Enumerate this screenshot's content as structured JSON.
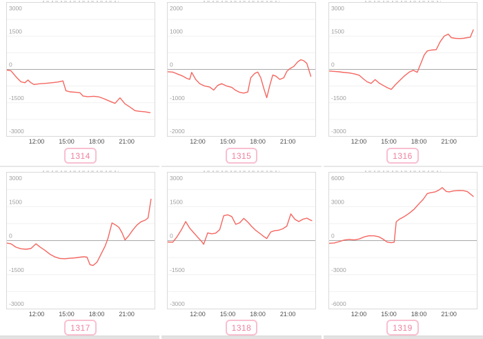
{
  "colors": {
    "line": "#f4655f",
    "grid": "#f0f0f0",
    "zero_line": "#a8a8a8",
    "panel_border": "#d9d9d9",
    "y_tick_label": "#9e9e9e",
    "x_tick_label": "#4d4d4d",
    "badge_text": "#ef7f9e",
    "badge_border": "#f8bfd0"
  },
  "axis": {
    "x_ticks": [
      "12:00",
      "15:00",
      "18:00",
      "21:00"
    ],
    "x_tick_hours": [
      12,
      15,
      18,
      21
    ],
    "x_domain_hours": [
      9,
      23.75
    ],
    "grid_divisions": 8
  },
  "chart_data": [
    {
      "type": "line",
      "id": "1314",
      "ylim": [
        -3000,
        3000
      ],
      "y_tick_labels": [
        "3000",
        "1500",
        "0",
        "-1500",
        "-3000"
      ],
      "points": [
        [
          9,
          -30
        ],
        [
          9.4,
          -60
        ],
        [
          9.9,
          -330
        ],
        [
          10.4,
          -560
        ],
        [
          10.8,
          -600
        ],
        [
          11.1,
          -480
        ],
        [
          11.4,
          -600
        ],
        [
          11.7,
          -680
        ],
        [
          12.2,
          -650
        ],
        [
          12.8,
          -630
        ],
        [
          13.5,
          -600
        ],
        [
          14.1,
          -570
        ],
        [
          14.6,
          -520
        ],
        [
          14.9,
          -960
        ],
        [
          15.3,
          -1010
        ],
        [
          15.8,
          -1030
        ],
        [
          16.3,
          -1050
        ],
        [
          16.6,
          -1200
        ],
        [
          17.1,
          -1230
        ],
        [
          17.7,
          -1210
        ],
        [
          18.2,
          -1240
        ],
        [
          18.7,
          -1320
        ],
        [
          19.2,
          -1420
        ],
        [
          19.8,
          -1530
        ],
        [
          20.3,
          -1280
        ],
        [
          20.8,
          -1550
        ],
        [
          21.3,
          -1700
        ],
        [
          21.8,
          -1860
        ],
        [
          22.3,
          -1890
        ],
        [
          22.8,
          -1910
        ],
        [
          23.3,
          -1950
        ]
      ]
    },
    {
      "type": "line",
      "id": "1315",
      "ylim": [
        -2000,
        2000
      ],
      "y_tick_labels": [
        "2000",
        "1000",
        "0",
        "-1000",
        "-2000"
      ],
      "points": [
        [
          9,
          -70
        ],
        [
          9.5,
          -80
        ],
        [
          10,
          -140
        ],
        [
          10.5,
          -200
        ],
        [
          10.9,
          -270
        ],
        [
          11.2,
          -300
        ],
        [
          11.4,
          -90
        ],
        [
          11.8,
          -300
        ],
        [
          12.2,
          -430
        ],
        [
          12.7,
          -500
        ],
        [
          13.2,
          -530
        ],
        [
          13.6,
          -620
        ],
        [
          14,
          -480
        ],
        [
          14.4,
          -430
        ],
        [
          14.9,
          -500
        ],
        [
          15.4,
          -540
        ],
        [
          15.8,
          -630
        ],
        [
          16.2,
          -690
        ],
        [
          16.6,
          -710
        ],
        [
          17,
          -680
        ],
        [
          17.3,
          -250
        ],
        [
          17.7,
          -120
        ],
        [
          18,
          -80
        ],
        [
          18.3,
          -250
        ],
        [
          18.6,
          -570
        ],
        [
          18.9,
          -850
        ],
        [
          19.2,
          -480
        ],
        [
          19.5,
          -170
        ],
        [
          19.8,
          -200
        ],
        [
          20.2,
          -300
        ],
        [
          20.6,
          -250
        ],
        [
          20.9,
          -60
        ],
        [
          21.2,
          20
        ],
        [
          21.6,
          90
        ],
        [
          22,
          230
        ],
        [
          22.3,
          290
        ],
        [
          22.6,
          260
        ],
        [
          22.9,
          180
        ],
        [
          23.3,
          -210
        ]
      ]
    },
    {
      "type": "line",
      "id": "1316",
      "ylim": [
        -3000,
        3000
      ],
      "y_tick_labels": [
        "3000",
        "1500",
        "0",
        "-1500",
        "-3000"
      ],
      "points": [
        [
          9,
          -70
        ],
        [
          9.5,
          -90
        ],
        [
          10,
          -110
        ],
        [
          10.5,
          -140
        ],
        [
          11,
          -160
        ],
        [
          11.5,
          -200
        ],
        [
          12,
          -260
        ],
        [
          12.4,
          -420
        ],
        [
          12.8,
          -560
        ],
        [
          13.2,
          -630
        ],
        [
          13.6,
          -460
        ],
        [
          14,
          -620
        ],
        [
          14.4,
          -720
        ],
        [
          14.8,
          -820
        ],
        [
          15.2,
          -900
        ],
        [
          15.6,
          -700
        ],
        [
          16,
          -520
        ],
        [
          16.5,
          -300
        ],
        [
          17,
          -120
        ],
        [
          17.4,
          -40
        ],
        [
          17.8,
          -130
        ],
        [
          18.1,
          200
        ],
        [
          18.5,
          650
        ],
        [
          18.8,
          830
        ],
        [
          19.2,
          870
        ],
        [
          19.7,
          890
        ],
        [
          20.1,
          1250
        ],
        [
          20.5,
          1500
        ],
        [
          20.9,
          1590
        ],
        [
          21.2,
          1430
        ],
        [
          21.6,
          1400
        ],
        [
          22,
          1390
        ],
        [
          22.4,
          1400
        ],
        [
          22.8,
          1430
        ],
        [
          23.1,
          1450
        ],
        [
          23.4,
          1780
        ]
      ]
    },
    {
      "type": "line",
      "id": "1317",
      "ylim": [
        -3000,
        3000
      ],
      "y_tick_labels": [
        "3000",
        "1500",
        "0",
        "-1500",
        "-3000"
      ],
      "points": [
        [
          9,
          -110
        ],
        [
          9.4,
          -140
        ],
        [
          9.9,
          -290
        ],
        [
          10.4,
          -360
        ],
        [
          10.9,
          -380
        ],
        [
          11.4,
          -350
        ],
        [
          11.9,
          -140
        ],
        [
          12.3,
          -280
        ],
        [
          12.8,
          -430
        ],
        [
          13.3,
          -600
        ],
        [
          13.8,
          -720
        ],
        [
          14.3,
          -790
        ],
        [
          14.8,
          -800
        ],
        [
          15.3,
          -780
        ],
        [
          15.8,
          -760
        ],
        [
          16.3,
          -730
        ],
        [
          16.7,
          -710
        ],
        [
          17,
          -730
        ],
        [
          17.3,
          -1060
        ],
        [
          17.6,
          -1100
        ],
        [
          18,
          -950
        ],
        [
          18.4,
          -600
        ],
        [
          18.8,
          -250
        ],
        [
          19.1,
          100
        ],
        [
          19.5,
          780
        ],
        [
          19.9,
          680
        ],
        [
          20.2,
          580
        ],
        [
          20.5,
          350
        ],
        [
          20.8,
          30
        ],
        [
          21.2,
          230
        ],
        [
          21.6,
          480
        ],
        [
          22,
          690
        ],
        [
          22.4,
          830
        ],
        [
          22.8,
          900
        ],
        [
          23.1,
          1000
        ],
        [
          23.4,
          1830
        ]
      ]
    },
    {
      "type": "line",
      "id": "1318",
      "ylim": [
        -3000,
        3000
      ],
      "y_tick_labels": [
        "3000",
        "1500",
        "0",
        "-1500",
        "-3000"
      ],
      "points": [
        [
          9,
          -60
        ],
        [
          9.5,
          -70
        ],
        [
          9.9,
          150
        ],
        [
          10.4,
          500
        ],
        [
          10.8,
          840
        ],
        [
          11.2,
          550
        ],
        [
          11.6,
          350
        ],
        [
          12,
          150
        ],
        [
          12.4,
          -40
        ],
        [
          12.6,
          -160
        ],
        [
          13,
          340
        ],
        [
          13.4,
          300
        ],
        [
          13.8,
          330
        ],
        [
          14.2,
          480
        ],
        [
          14.6,
          1100
        ],
        [
          15,
          1140
        ],
        [
          15.4,
          1060
        ],
        [
          15.8,
          720
        ],
        [
          16.2,
          790
        ],
        [
          16.6,
          980
        ],
        [
          17,
          820
        ],
        [
          17.4,
          620
        ],
        [
          17.8,
          450
        ],
        [
          18.2,
          320
        ],
        [
          18.6,
          180
        ],
        [
          18.9,
          90
        ],
        [
          19.3,
          380
        ],
        [
          19.7,
          440
        ],
        [
          20.1,
          460
        ],
        [
          20.5,
          520
        ],
        [
          20.9,
          640
        ],
        [
          21.3,
          1180
        ],
        [
          21.7,
          940
        ],
        [
          22.1,
          840
        ],
        [
          22.5,
          940
        ],
        [
          22.9,
          990
        ],
        [
          23.2,
          920
        ],
        [
          23.4,
          880
        ]
      ]
    },
    {
      "type": "line",
      "id": "1319",
      "ylim": [
        -6000,
        6000
      ],
      "y_tick_labels": [
        "6000",
        "3000",
        "0",
        "-3000",
        "-6000"
      ],
      "points": [
        [
          9,
          -240
        ],
        [
          9.5,
          -210
        ],
        [
          10,
          -90
        ],
        [
          10.5,
          50
        ],
        [
          11,
          110
        ],
        [
          11.5,
          70
        ],
        [
          12,
          140
        ],
        [
          12.5,
          330
        ],
        [
          13,
          430
        ],
        [
          13.5,
          420
        ],
        [
          14,
          330
        ],
        [
          14.4,
          120
        ],
        [
          14.8,
          -130
        ],
        [
          15.2,
          -190
        ],
        [
          15.5,
          -140
        ],
        [
          15.7,
          1650
        ],
        [
          16,
          1880
        ],
        [
          16.5,
          2120
        ],
        [
          17,
          2420
        ],
        [
          17.5,
          2780
        ],
        [
          18,
          3280
        ],
        [
          18.4,
          3650
        ],
        [
          18.8,
          4150
        ],
        [
          19.1,
          4220
        ],
        [
          19.6,
          4300
        ],
        [
          20,
          4480
        ],
        [
          20.3,
          4680
        ],
        [
          20.7,
          4340
        ],
        [
          21,
          4300
        ],
        [
          21.4,
          4380
        ],
        [
          21.9,
          4420
        ],
        [
          22.4,
          4410
        ],
        [
          22.8,
          4330
        ],
        [
          23.1,
          4120
        ],
        [
          23.4,
          3900
        ]
      ]
    }
  ]
}
